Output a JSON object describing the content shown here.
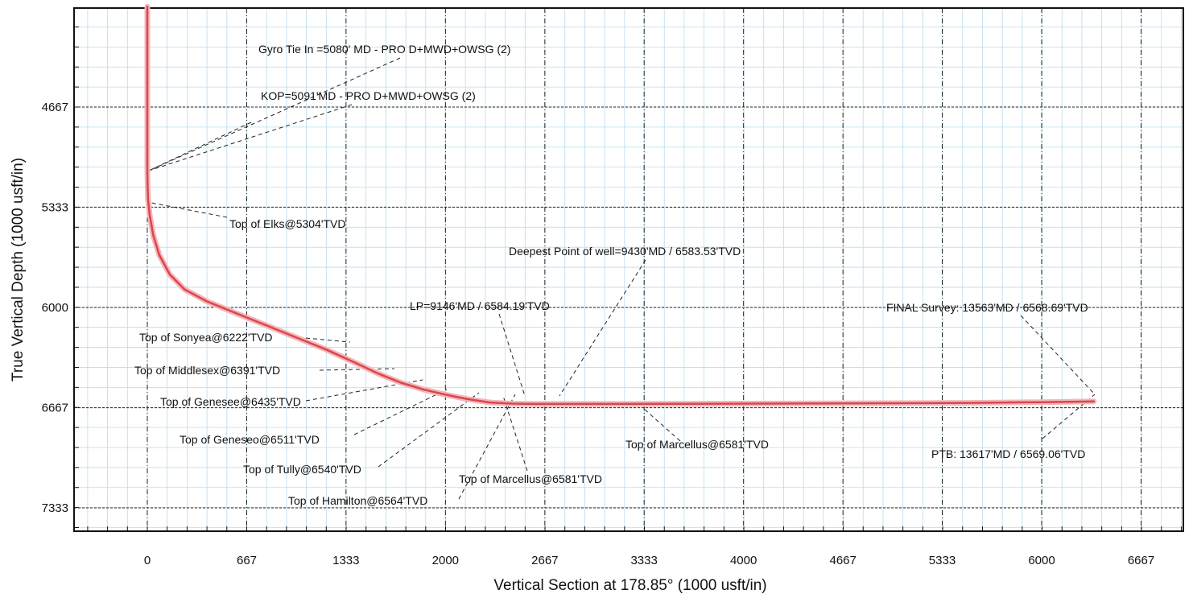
{
  "chart_data": {
    "type": "line",
    "xlabel": "Vertical Section at 178.85° (1000 usft/in)",
    "ylabel": "True Vertical Depth (1000 usft/in)",
    "xlim": [
      -500,
      7000
    ],
    "ylim": [
      4000,
      7500
    ],
    "y_inverted": true,
    "grid": true,
    "x_ticks": [
      0,
      667,
      1333,
      2000,
      2667,
      3333,
      4000,
      4667,
      5333,
      6000,
      6667
    ],
    "x_tick_labels": [
      "0",
      "667",
      "1333",
      "2000",
      "2667",
      "3333",
      "4000",
      "4667",
      "5333",
      "6000",
      "6667"
    ],
    "y_ticks": [
      4667,
      5333,
      6000,
      6667,
      7333
    ],
    "y_tick_labels": [
      "4667",
      "5333",
      "6000",
      "6667",
      "7333"
    ],
    "series": [
      {
        "color": "#d9464e",
        "x": [
          0,
          0,
          2,
          5,
          15,
          40,
          80,
          150,
          250,
          400,
          600,
          800,
          1000,
          1200,
          1400,
          1550,
          1700,
          1850,
          2000,
          2150,
          2300,
          2450,
          2600,
          3000,
          4000,
          5000,
          5500,
          6000,
          6350
        ],
        "y": [
          4000,
          5080,
          5200,
          5280,
          5380,
          5520,
          5650,
          5780,
          5880,
          5960,
          6040,
          6120,
          6200,
          6280,
          6370,
          6440,
          6500,
          6545,
          6580,
          6610,
          6632,
          6640,
          6642,
          6642,
          6640,
          6637,
          6635,
          6630,
          6625
        ]
      }
    ],
    "annotations": [
      "Gyro Tie In =5080' MD - PRO D+MWD+OWSG (2)",
      "KOP=5091'MD - PRO D+MWD+OWSG (2)",
      "Top of Elks@5304'TVD",
      "Deepest Point of well=9430'MD / 6583.53'TVD",
      "LP=9146'MD / 6584.19'TVD",
      "FINAL Survey: 13563'MD / 6568.69'TVD",
      "Top of Sonyea@6222'TVD",
      "Top of Middlesex@6391'TVD",
      "Top of Genesee@6435'TVD",
      "Top of Geneseo@6511'TVD",
      "Top of Tully@6540'TVD",
      "Top of Hamilton@6564'TVD",
      "Top of Marcellus@6581'TVD",
      "Top of Marcellus@6581'TVD",
      "PTB: 13617'MD / 6569.06'TVD"
    ]
  }
}
